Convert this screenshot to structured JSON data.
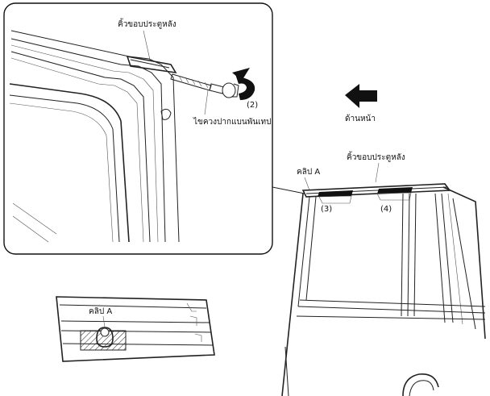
{
  "diagram": {
    "inset": {
      "molding_label": "คิ้วขอบประตูหลัง",
      "tool_label": "ไขควงปากแบนพันเทป",
      "step_label": "(2)"
    },
    "direction_label": "ด้านหน้า",
    "main": {
      "molding_label": "คิ้วขอบประตูหลัง",
      "clip_label": "คลิป A",
      "step3_label": "(3)",
      "step4_label": "(4)"
    },
    "detail": {
      "clip_label": "คลิป A"
    }
  }
}
